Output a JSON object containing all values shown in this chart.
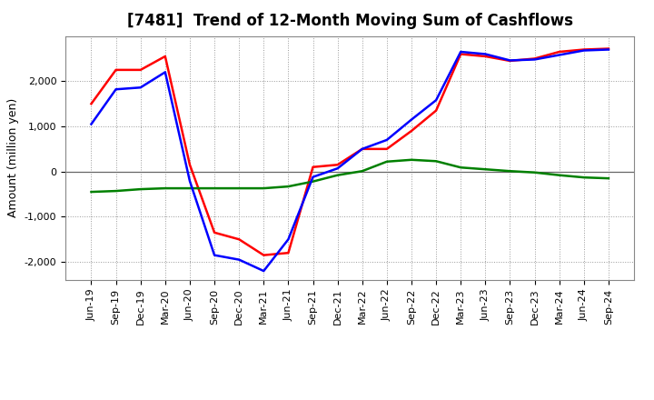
{
  "title": "[7481]  Trend of 12-Month Moving Sum of Cashflows",
  "ylabel": "Amount (million yen)",
  "background_color": "#ffffff",
  "plot_bg_color": "#ffffff",
  "grid_color": "#999999",
  "xlabels": [
    "Jun-19",
    "Sep-19",
    "Dec-19",
    "Mar-20",
    "Jun-20",
    "Sep-20",
    "Dec-20",
    "Mar-21",
    "Jun-21",
    "Sep-21",
    "Dec-21",
    "Mar-22",
    "Jun-22",
    "Sep-22",
    "Dec-22",
    "Mar-23",
    "Jun-23",
    "Sep-23",
    "Dec-23",
    "Mar-24",
    "Jun-24",
    "Sep-24"
  ],
  "operating": [
    1500,
    2250,
    2250,
    2550,
    150,
    -1350,
    -1500,
    -1850,
    -1800,
    100,
    150,
    500,
    500,
    900,
    1350,
    2600,
    2550,
    2450,
    2500,
    2650,
    2700,
    2720
  ],
  "investing": [
    -450,
    -430,
    -390,
    -370,
    -370,
    -370,
    -370,
    -370,
    -330,
    -220,
    -80,
    10,
    220,
    260,
    230,
    90,
    50,
    10,
    -20,
    -80,
    -130,
    -150
  ],
  "free": [
    1050,
    1820,
    1860,
    2200,
    -210,
    -1850,
    -1950,
    -2200,
    -1500,
    -120,
    70,
    500,
    700,
    1150,
    1580,
    2650,
    2600,
    2460,
    2480,
    2580,
    2680,
    2700
  ],
  "ylim": [
    -2400,
    3000
  ],
  "yticks": [
    -2000,
    -1000,
    0,
    1000,
    2000
  ],
  "line_colors": {
    "operating": "#ff0000",
    "investing": "#008000",
    "free": "#0000ff"
  },
  "line_width": 1.8,
  "title_fontsize": 12,
  "ylabel_fontsize": 9,
  "tick_fontsize": 8,
  "legend_fontsize": 9
}
